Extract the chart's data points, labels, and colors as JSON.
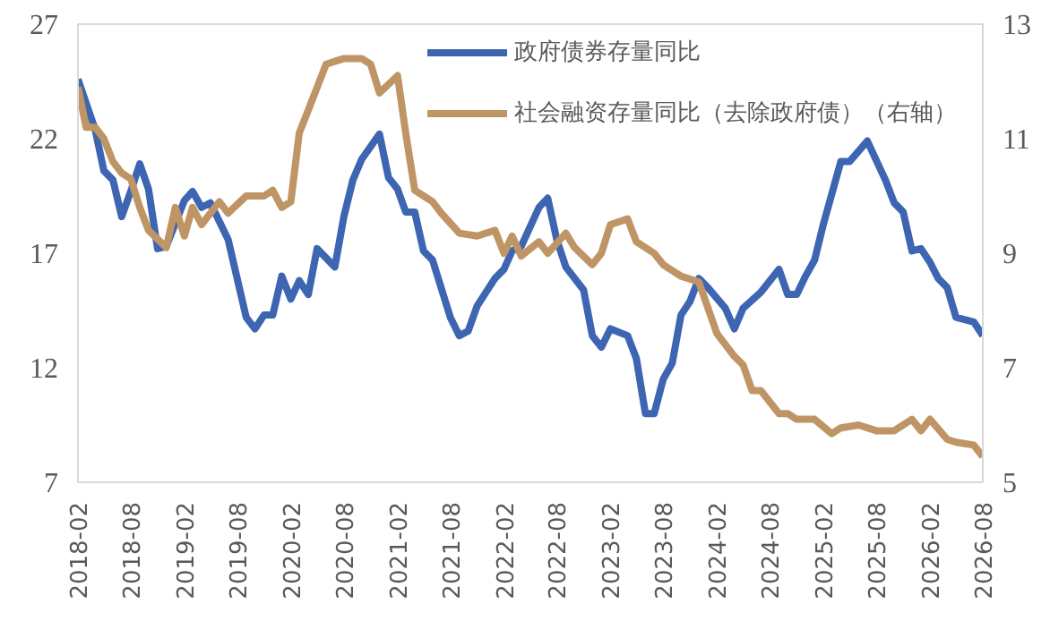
{
  "chart_data": {
    "type": "line",
    "xlim": [
      "2018-02",
      "2026-08"
    ],
    "xticks": [
      "2018-02",
      "2018-08",
      "2019-02",
      "2019-08",
      "2020-02",
      "2020-08",
      "2021-02",
      "2021-08",
      "2022-02",
      "2022-08",
      "2023-02",
      "2023-08",
      "2024-02",
      "2024-08",
      "2025-02",
      "2025-08",
      "2026-02",
      "2026-08"
    ],
    "ylim": [
      7,
      27
    ],
    "yticks": [
      7,
      12,
      17,
      22,
      27
    ],
    "y2lim": [
      5,
      13
    ],
    "y2ticks": [
      5,
      7,
      9,
      11,
      13
    ],
    "grid": false,
    "legend": "top",
    "marker": "none",
    "line_style": "solid",
    "series": [
      {
        "name": "政府债券存量同比",
        "color": "#3d65b1",
        "x": [
          "2018-02",
          "2018-04",
          "2018-05",
          "2018-06",
          "2018-07",
          "2018-08",
          "2018-09",
          "2018-10",
          "2018-11",
          "2018-12",
          "2019-02",
          "2019-03",
          "2019-04",
          "2019-05",
          "2019-07",
          "2019-09",
          "2019-10",
          "2019-11",
          "2019-12",
          "2020-01",
          "2020-02",
          "2020-03",
          "2020-04",
          "2020-05",
          "2020-07",
          "2020-08",
          "2020-09",
          "2020-10",
          "2020-12",
          "2021-01",
          "2021-02",
          "2021-03",
          "2021-04",
          "2021-05",
          "2021-06",
          "2021-08",
          "2021-09",
          "2021-10",
          "2021-11",
          "2022-01",
          "2022-02",
          "2022-03",
          "2022-04",
          "2022-06",
          "2022-07",
          "2022-08",
          "2022-09",
          "2022-11",
          "2022-12",
          "2023-01",
          "2023-02",
          "2023-04",
          "2023-05",
          "2023-06",
          "2023-07",
          "2023-08",
          "2023-09",
          "2023-10",
          "2023-11",
          "2023-12",
          "2024-01",
          "2024-03",
          "2024-04",
          "2024-05",
          "2024-07",
          "2024-09",
          "2024-10",
          "2024-11",
          "2024-12",
          "2025-01",
          "2025-02",
          "2025-04",
          "2025-05",
          "2025-07",
          "2025-09",
          "2025-10",
          "2025-11",
          "2025-12",
          "2026-01",
          "2026-02",
          "2026-03",
          "2026-04",
          "2026-05",
          "2026-07",
          "2026-08"
        ],
        "values": [
          24.6,
          22.4,
          20.6,
          20.2,
          18.6,
          19.7,
          20.9,
          19.8,
          17.2,
          17.3,
          19.3,
          19.7,
          19.0,
          19.2,
          17.6,
          14.2,
          13.7,
          14.3,
          14.3,
          16.0,
          15.0,
          15.8,
          15.2,
          17.2,
          16.4,
          18.6,
          20.2,
          21.1,
          22.2,
          20.3,
          19.8,
          18.8,
          18.8,
          17.1,
          16.7,
          14.2,
          13.4,
          13.6,
          14.7,
          15.9,
          16.3,
          17.1,
          17.3,
          19.0,
          19.4,
          17.6,
          16.4,
          15.4,
          13.4,
          12.9,
          13.7,
          13.4,
          12.4,
          10.0,
          10.0,
          11.5,
          12.2,
          14.3,
          14.9,
          15.9,
          15.5,
          14.6,
          13.7,
          14.6,
          15.3,
          16.3,
          15.2,
          15.2,
          16.0,
          16.7,
          18.3,
          21.0,
          21.0,
          21.9,
          20.2,
          19.2,
          18.8,
          17.1,
          17.2,
          16.6,
          15.9,
          15.5,
          14.2,
          14.0,
          13.4
        ]
      },
      {
        "name": "社会融资存量同比（去除政府债）（右轴）",
        "color": "#bf9566",
        "axis": "y2",
        "x": [
          "2018-02",
          "2018-03",
          "2018-04",
          "2018-05",
          "2018-06",
          "2018-07",
          "2018-08",
          "2018-09",
          "2018-10",
          "2018-12",
          "2019-01",
          "2019-02",
          "2019-03",
          "2019-04",
          "2019-06",
          "2019-07",
          "2019-09",
          "2019-11",
          "2019-12",
          "2020-01",
          "2020-02",
          "2020-03",
          "2020-04",
          "2020-06",
          "2020-08",
          "2020-10",
          "2020-11",
          "2020-12",
          "2021-02",
          "2021-03",
          "2021-04",
          "2021-06",
          "2021-07",
          "2021-09",
          "2021-11",
          "2022-01",
          "2022-02",
          "2022-03",
          "2022-04",
          "2022-06",
          "2022-07",
          "2022-09",
          "2022-10",
          "2022-12",
          "2023-01",
          "2023-02",
          "2023-04",
          "2023-05",
          "2023-07",
          "2023-08",
          "2023-10",
          "2023-12",
          "2024-02",
          "2024-04",
          "2024-05",
          "2024-06",
          "2024-07",
          "2024-09",
          "2024-10",
          "2024-11",
          "2025-01",
          "2025-03",
          "2025-04",
          "2025-06",
          "2025-08",
          "2025-10",
          "2025-12",
          "2026-01",
          "2026-02",
          "2026-04",
          "2026-05",
          "2026-07",
          "2026-08"
        ],
        "values": [
          11.9,
          11.2,
          11.2,
          11.0,
          10.6,
          10.4,
          10.3,
          9.8,
          9.4,
          9.1,
          9.8,
          9.3,
          9.8,
          9.5,
          9.9,
          9.7,
          10.0,
          10.0,
          10.1,
          9.8,
          9.9,
          11.1,
          11.5,
          12.3,
          12.4,
          12.4,
          12.3,
          11.8,
          12.1,
          11.1,
          10.1,
          9.9,
          9.7,
          9.35,
          9.3,
          9.4,
          9.0,
          9.3,
          8.95,
          9.2,
          9.0,
          9.35,
          9.1,
          8.8,
          9.0,
          9.5,
          9.6,
          9.2,
          9.0,
          8.8,
          8.6,
          8.5,
          7.6,
          7.2,
          7.05,
          6.6,
          6.6,
          6.2,
          6.2,
          6.1,
          6.1,
          5.85,
          5.95,
          6.0,
          5.9,
          5.9,
          6.1,
          5.9,
          6.1,
          5.75,
          5.7,
          5.65,
          5.45
        ]
      }
    ]
  }
}
